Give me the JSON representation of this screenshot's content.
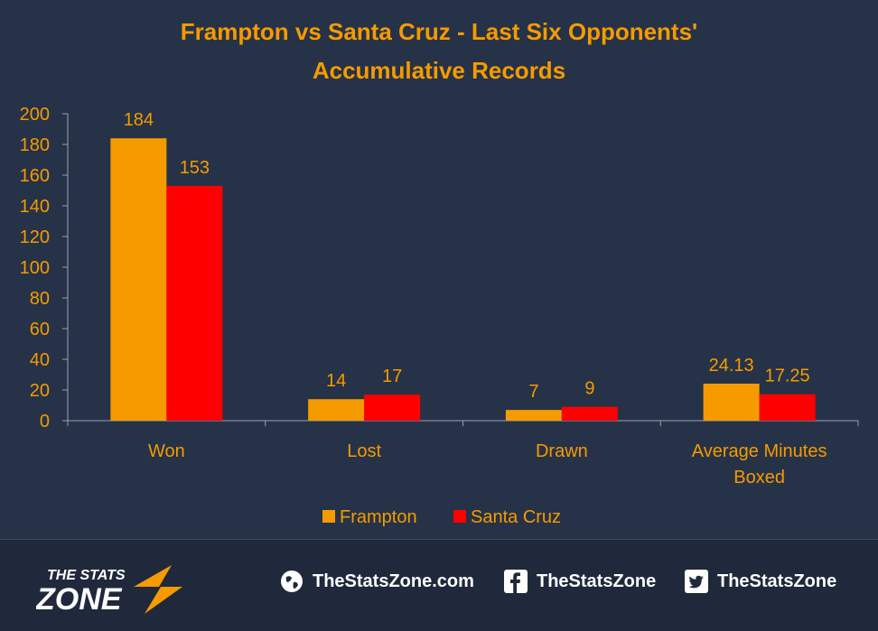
{
  "chart_data": {
    "type": "bar",
    "title_line1": "Frampton vs Santa Cruz - Last Six Opponents'",
    "title_line2": "Accumulative Records",
    "categories": [
      "Won",
      "Lost",
      "Drawn",
      "Average Minutes Boxed"
    ],
    "series": [
      {
        "name": "Frampton",
        "color": "#f59b00",
        "values": [
          184,
          14,
          7,
          24.13
        ],
        "labels": [
          "184",
          "14",
          "7",
          "24.13"
        ]
      },
      {
        "name": "Santa Cruz",
        "color": "#ff0000",
        "values": [
          153,
          17,
          9,
          17.25
        ],
        "labels": [
          "153",
          "17",
          "9",
          "17.25"
        ]
      }
    ],
    "ylim": [
      0,
      200
    ],
    "yticks": [
      0,
      20,
      40,
      60,
      80,
      100,
      120,
      140,
      160,
      180,
      200
    ],
    "legend": "bottom",
    "grid": false
  },
  "footer": {
    "logo_top": "THE STATS",
    "logo_bottom": "ZONE",
    "website": "TheStatsZone.com",
    "facebook": "TheStatsZone",
    "twitter": "TheStatsZone",
    "website_icon": "globe-icon",
    "facebook_icon": "facebook-icon",
    "twitter_icon": "twitter-icon"
  }
}
